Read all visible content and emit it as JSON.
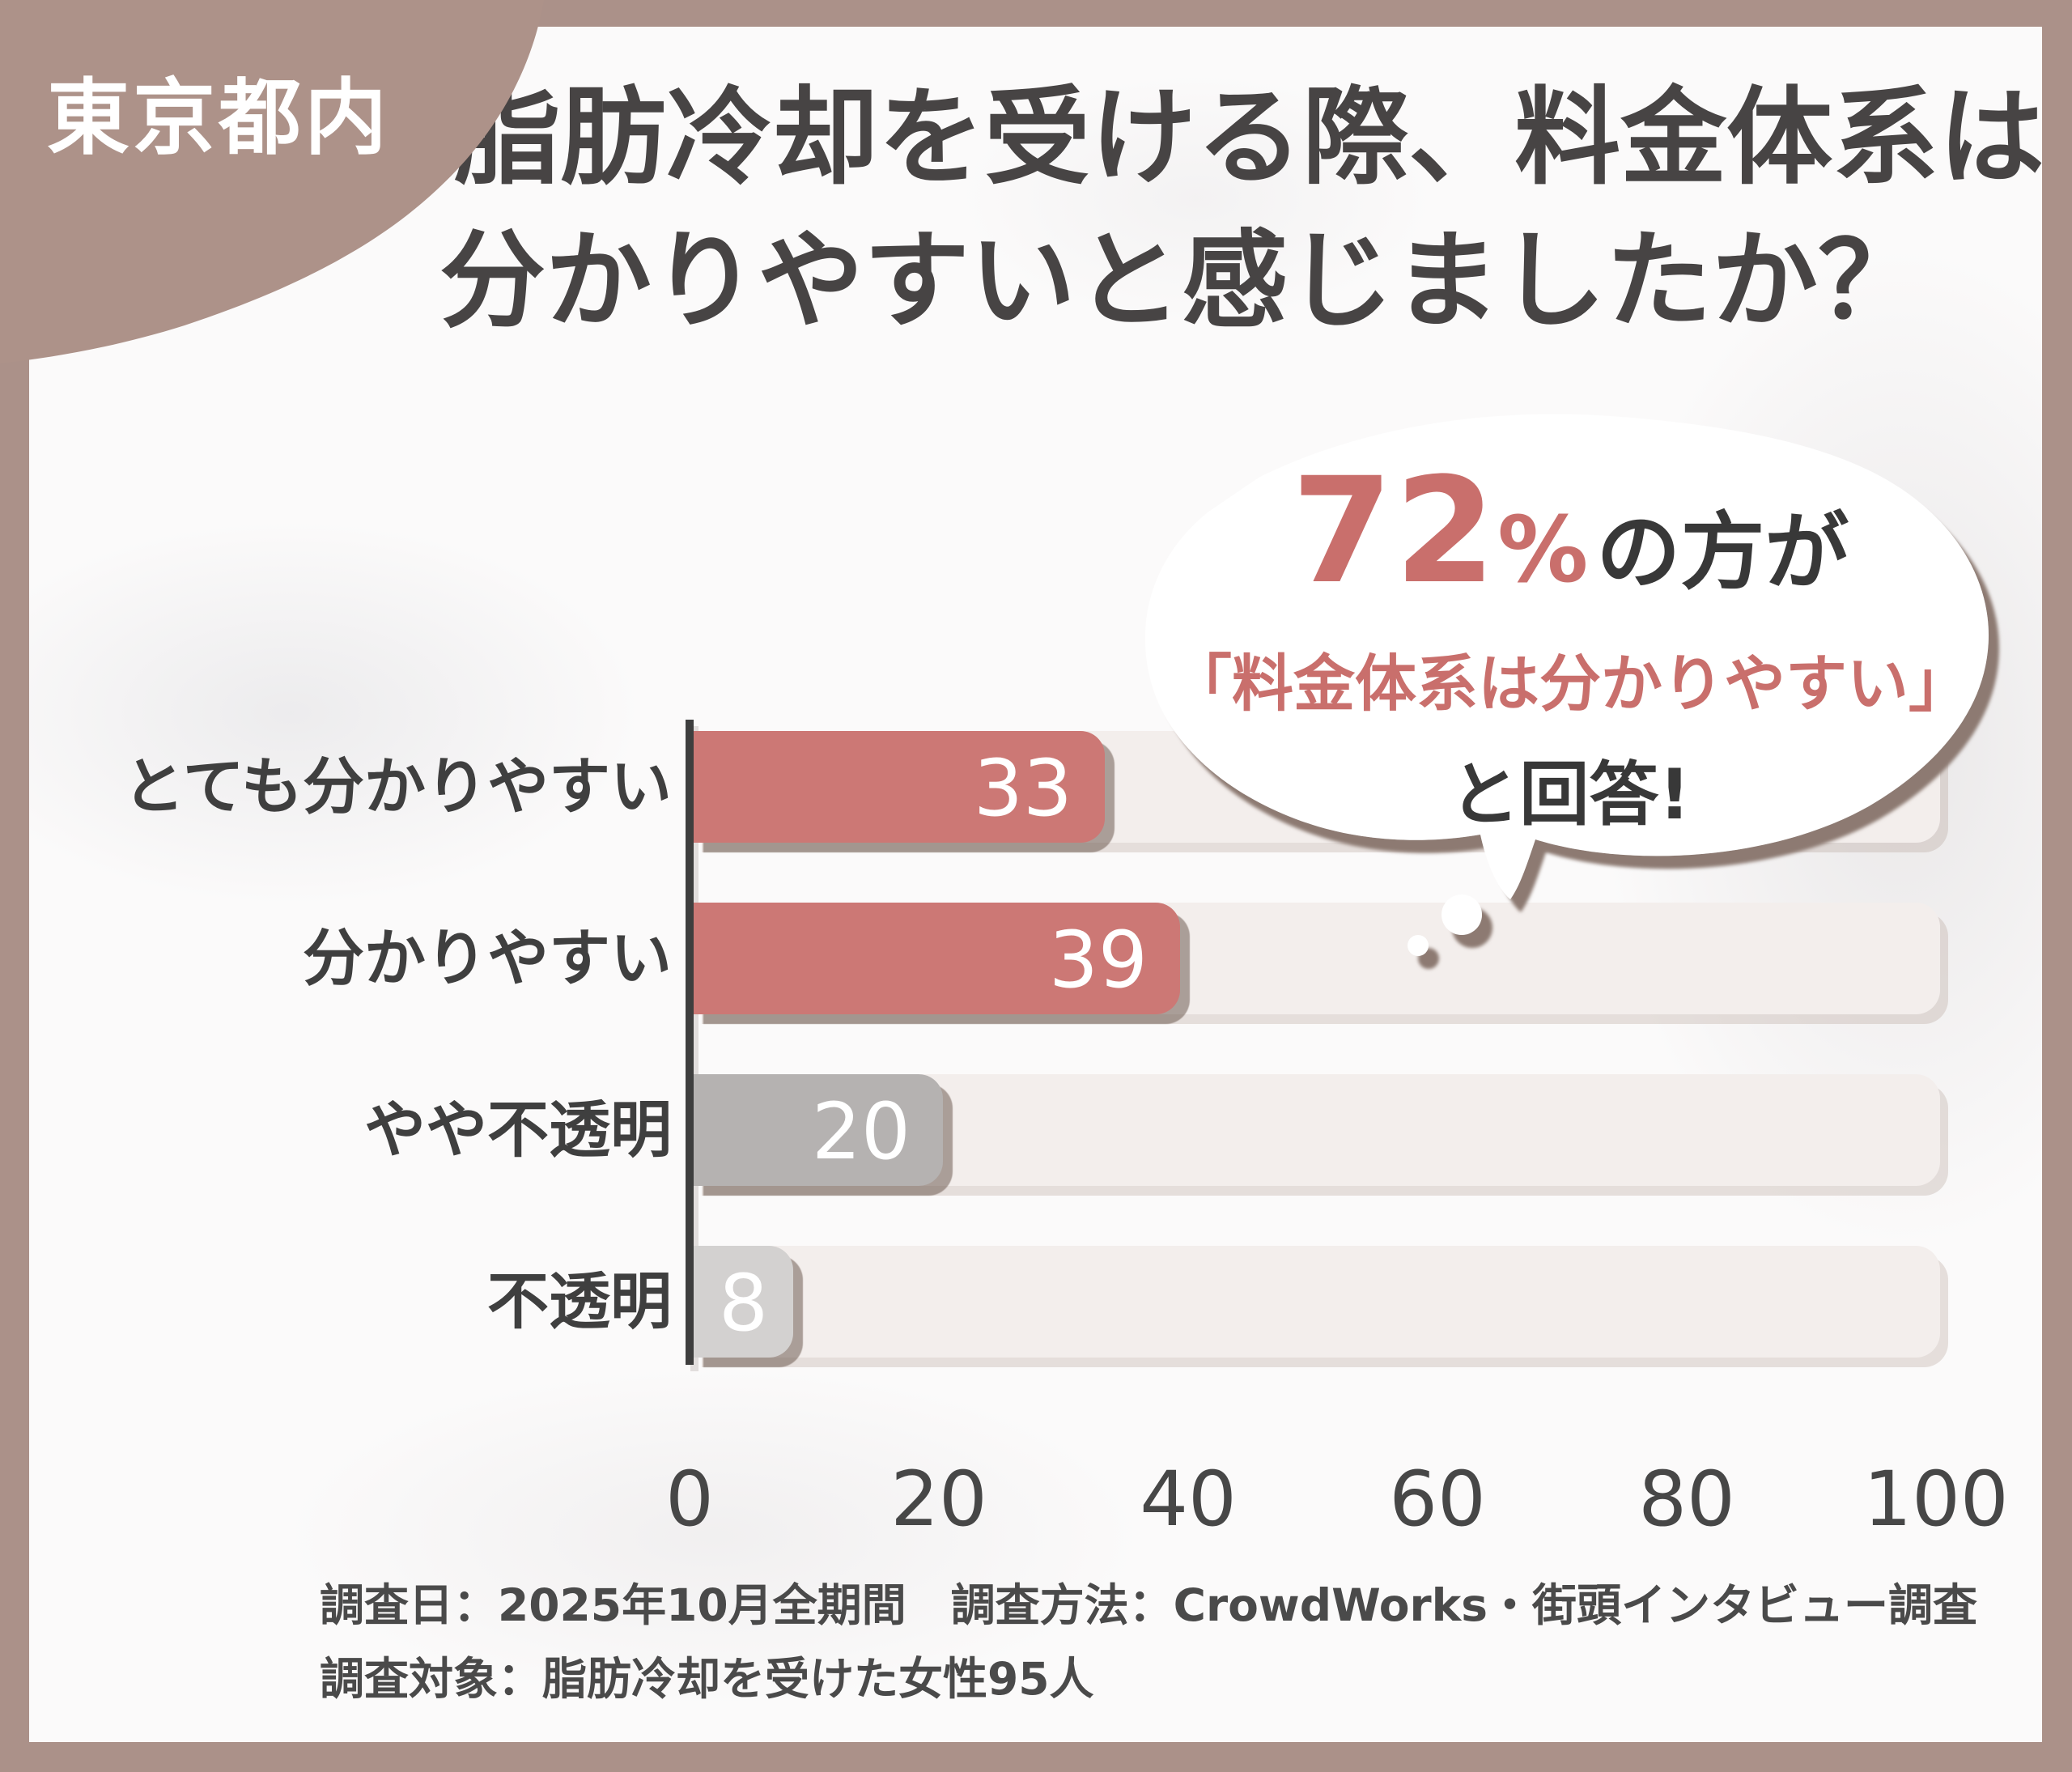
{
  "badge": {
    "label": "東京都内"
  },
  "title": {
    "line1": "Q.脂肪冷却を受ける際、料金体系は",
    "line2": "分かりやすいと感じましたか？"
  },
  "callout": {
    "percent": "72",
    "percent_sign": "%",
    "who": "の方が",
    "quote": "「料金体系は分かりやすい」",
    "answer": "と回答!"
  },
  "chart_data": {
    "type": "bar",
    "orientation": "horizontal",
    "title": "Q.脂肪冷却を受ける際、料金体系は分かりやすいと感じましたか？",
    "categories": [
      "とても分かりやすい",
      "分かりやすい",
      "やや不透明",
      "不透明"
    ],
    "values": [
      33,
      39,
      20,
      8
    ],
    "bar_colors": [
      "#cc7875",
      "#cc7875",
      "#b5b2b1",
      "#d3d1d0"
    ],
    "xlim": [
      0,
      100
    ],
    "x_ticks": [
      0,
      20,
      40,
      60,
      80,
      100
    ],
    "grid": false,
    "value_label_position": "inside-end",
    "value_label_color": "#ffffff",
    "highlight_note": "72%の方が「料金体系は分かりやすい」と回答!"
  },
  "footer": {
    "line1": "調査日：2025年10月全期間　調査方法：CrowdWorks・街頭インタビュー調査",
    "line2": "調査対象：脂肪冷却を受けた女性95人"
  },
  "colors": {
    "frame": "#ab9189",
    "background": "#fbfafa",
    "accent_red": "#c96f6c",
    "bar_red": "#cc7875",
    "bar_gray": "#b5b2b1",
    "bar_light_gray": "#d3d1d0",
    "track": "#f3eeec",
    "axis": "#3e3e3e",
    "text_dark": "#3f3f3f",
    "value_text": "#ffffff"
  }
}
